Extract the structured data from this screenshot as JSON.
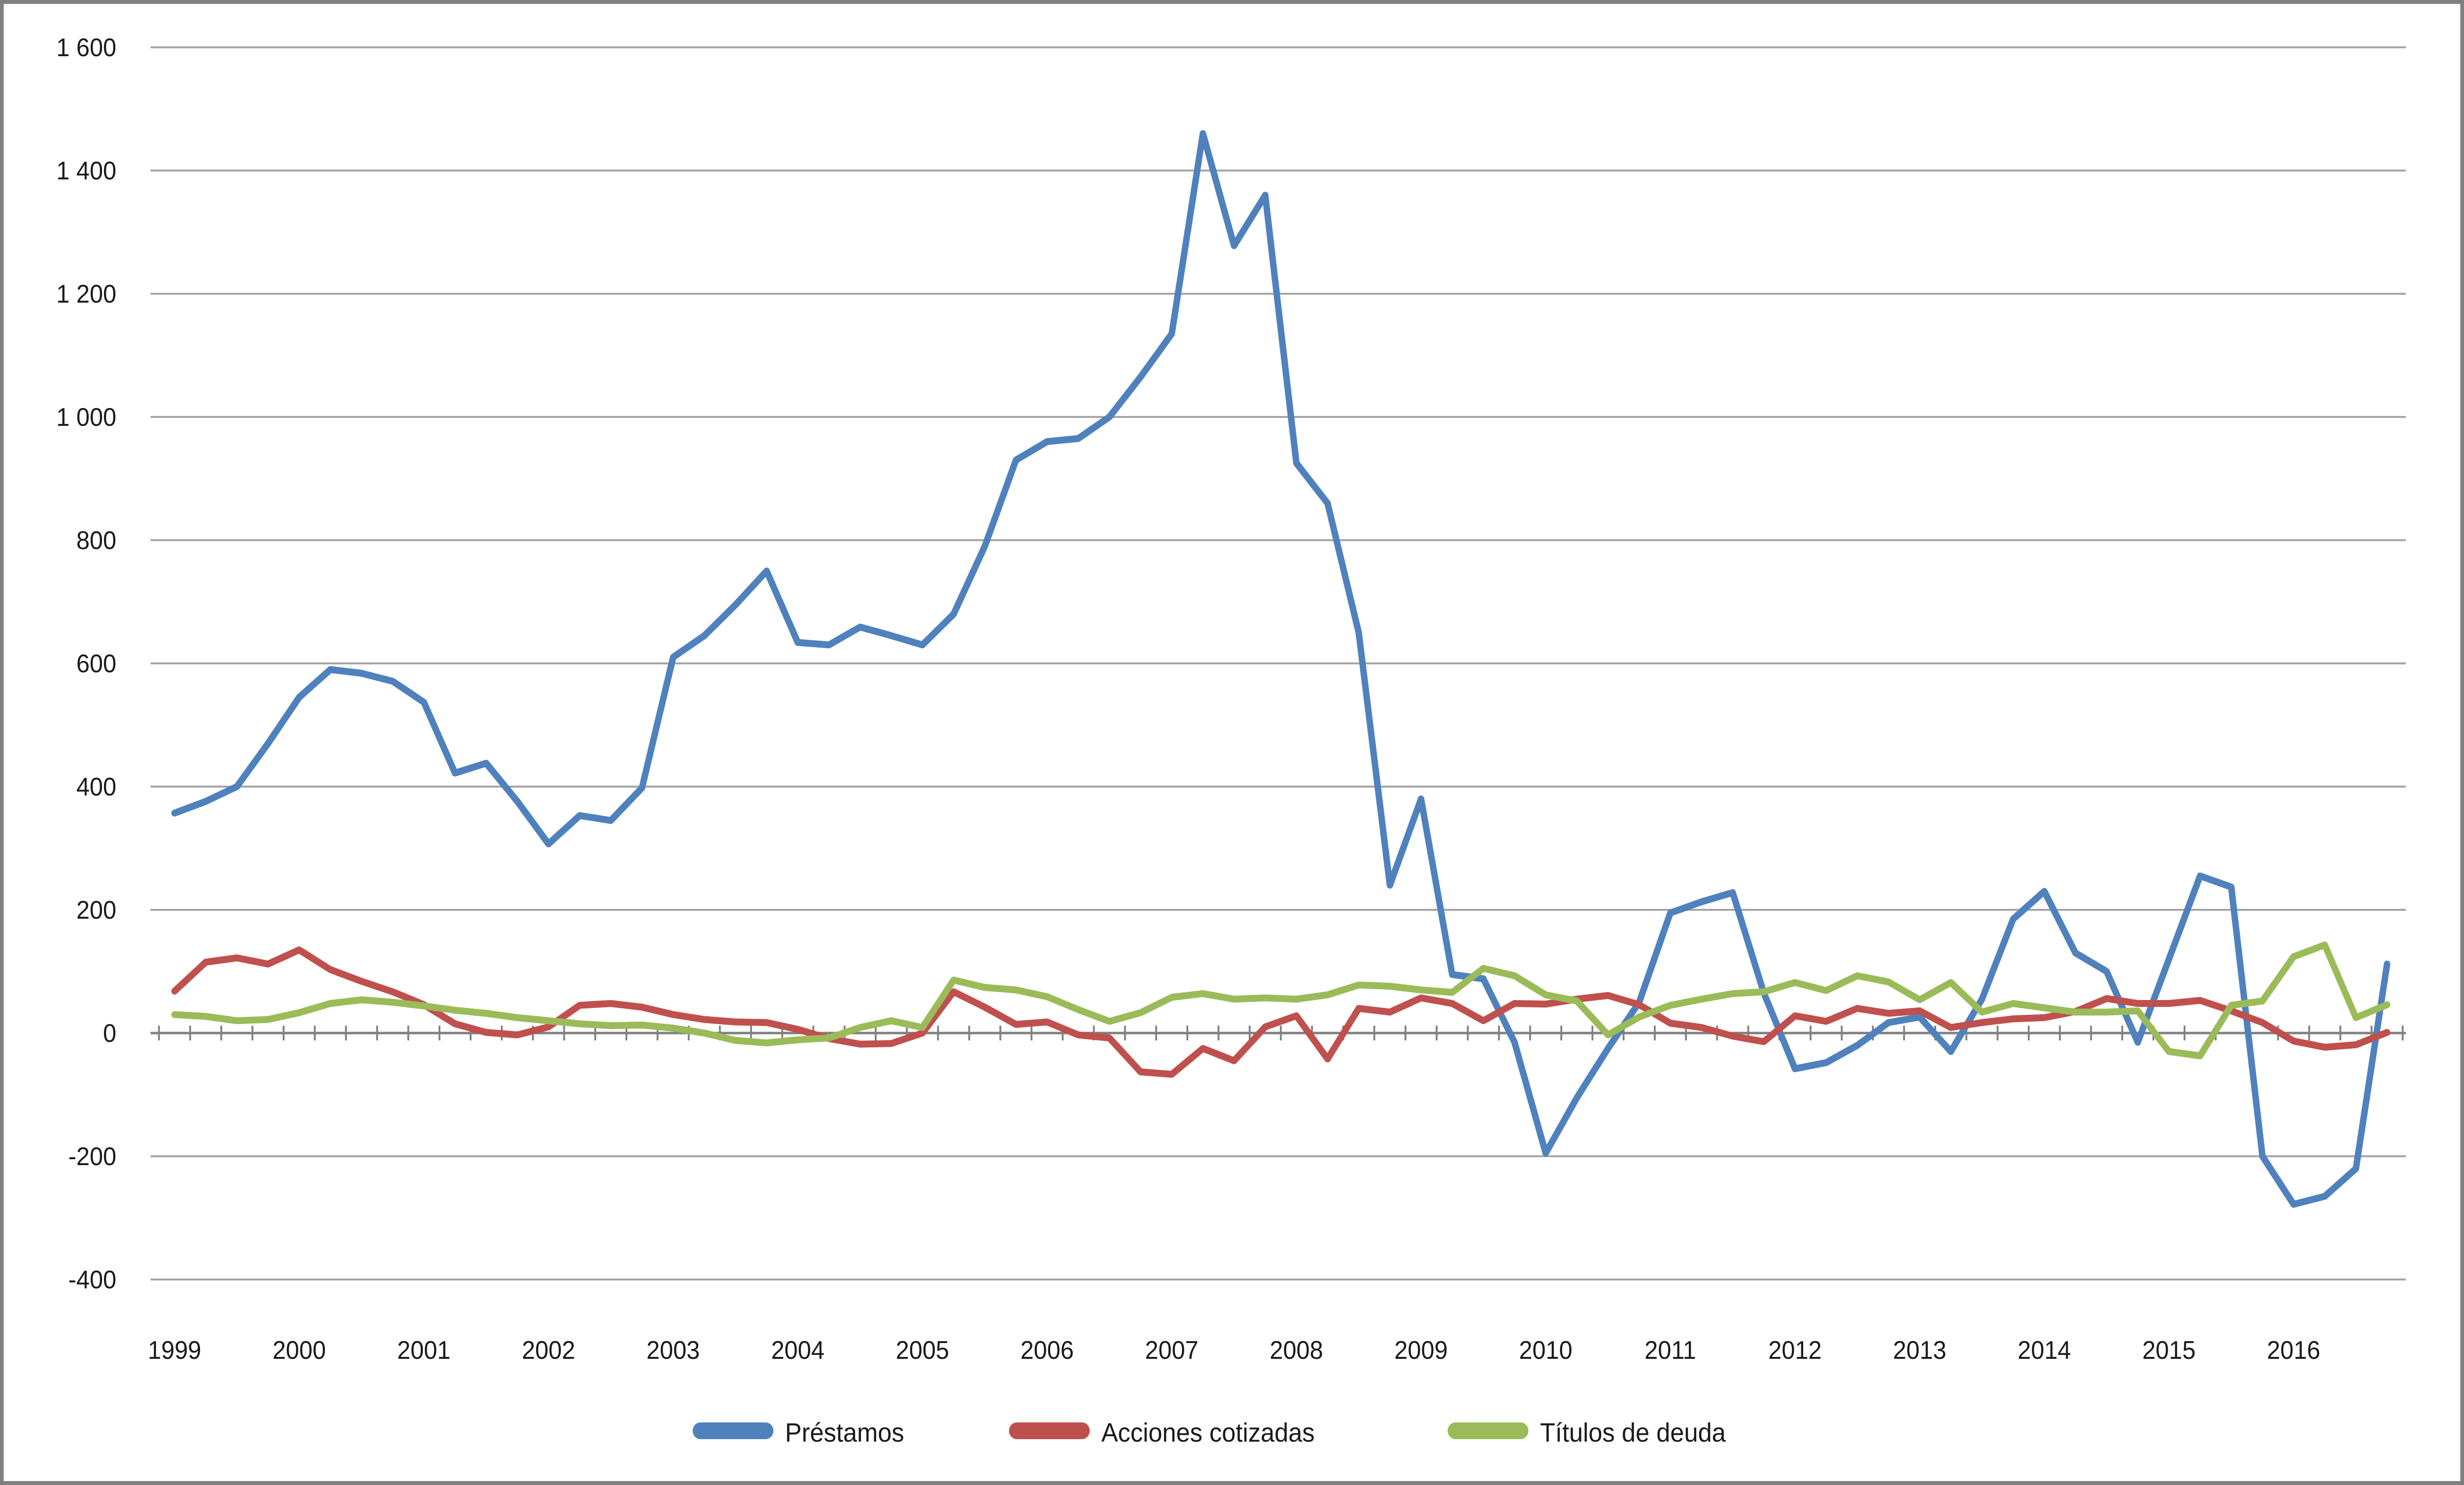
{
  "chart_data": {
    "type": "line",
    "title": "",
    "xlabel": "",
    "ylabel": "",
    "x_categories_years": [
      "1999",
      "2000",
      "2001",
      "2002",
      "2003",
      "2004",
      "2005",
      "2006",
      "2007",
      "2008",
      "2009",
      "2010",
      "2011",
      "2012",
      "2013",
      "2014",
      "2015",
      "2016"
    ],
    "x_points_per_year": 4,
    "x_frequency": "quarterly",
    "ylim": [
      -400,
      1600
    ],
    "ytick_step": 200,
    "ytick_labels": [
      "1 600",
      "1 400",
      "1 200",
      "1 000",
      "800",
      "600",
      "400",
      "200",
      "0",
      "-200",
      "-400"
    ],
    "grid": true,
    "legend_position": "bottom",
    "series": [
      {
        "name": "Préstamos",
        "color": "#4F81BD",
        "values": [
          357,
          376,
          400,
          470,
          545,
          590,
          584,
          571,
          537,
          422,
          438,
          376,
          307,
          353,
          345,
          398,
          610,
          645,
          695,
          750,
          634,
          630,
          659,
          645,
          630,
          680,
          790,
          930,
          960,
          965,
          1000,
          1065,
          1135,
          1460,
          1278,
          1360,
          925,
          860,
          650,
          240,
          380,
          95,
          88,
          -15,
          -195,
          -105,
          -25,
          50,
          195,
          213,
          228,
          65,
          -58,
          -48,
          -20,
          17,
          26,
          -30,
          55,
          185,
          230,
          130,
          100,
          -15,
          120,
          255,
          237,
          -200,
          -278,
          -265,
          -220,
          112
        ]
      },
      {
        "name": "Acciones cotizadas",
        "color": "#C0504D",
        "values": [
          68,
          115,
          122,
          112,
          135,
          103,
          84,
          67,
          46,
          15,
          1,
          -3,
          10,
          45,
          48,
          42,
          30,
          22,
          18,
          17,
          6,
          -9,
          -18,
          -17,
          0,
          67,
          42,
          14,
          18,
          -3,
          -8,
          -63,
          -67,
          -25,
          -45,
          10,
          28,
          -42,
          40,
          34,
          57,
          48,
          20,
          48,
          47,
          55,
          61,
          46,
          16,
          9,
          -5,
          -14,
          28,
          19,
          40,
          32,
          36,
          9,
          17,
          23,
          25,
          35,
          56,
          48,
          48,
          53,
          36,
          17,
          -13,
          -23,
          -19,
          1
        ]
      },
      {
        "name": "Títulos de deuda",
        "color": "#9BBB59",
        "values": [
          30,
          27,
          20,
          22,
          33,
          48,
          54,
          50,
          44,
          37,
          32,
          25,
          20,
          15,
          12,
          13,
          8,
          0,
          -12,
          -16,
          -11,
          -8,
          9,
          20,
          9,
          86,
          74,
          70,
          59,
          38,
          19,
          33,
          58,
          64,
          55,
          57,
          55,
          62,
          78,
          76,
          70,
          66,
          105,
          93,
          62,
          52,
          -3,
          26,
          45,
          55,
          64,
          67,
          82,
          69,
          93,
          83,
          54,
          82,
          34,
          48,
          41,
          34,
          34,
          36,
          -30,
          -37,
          45,
          52,
          124,
          143,
          25,
          46
        ]
      }
    ]
  },
  "colors": {
    "background": "#FFFFFF",
    "border": "#808080",
    "gridline": "#A6A6A6",
    "axis": "#808080",
    "text": "#1A1A1A"
  }
}
